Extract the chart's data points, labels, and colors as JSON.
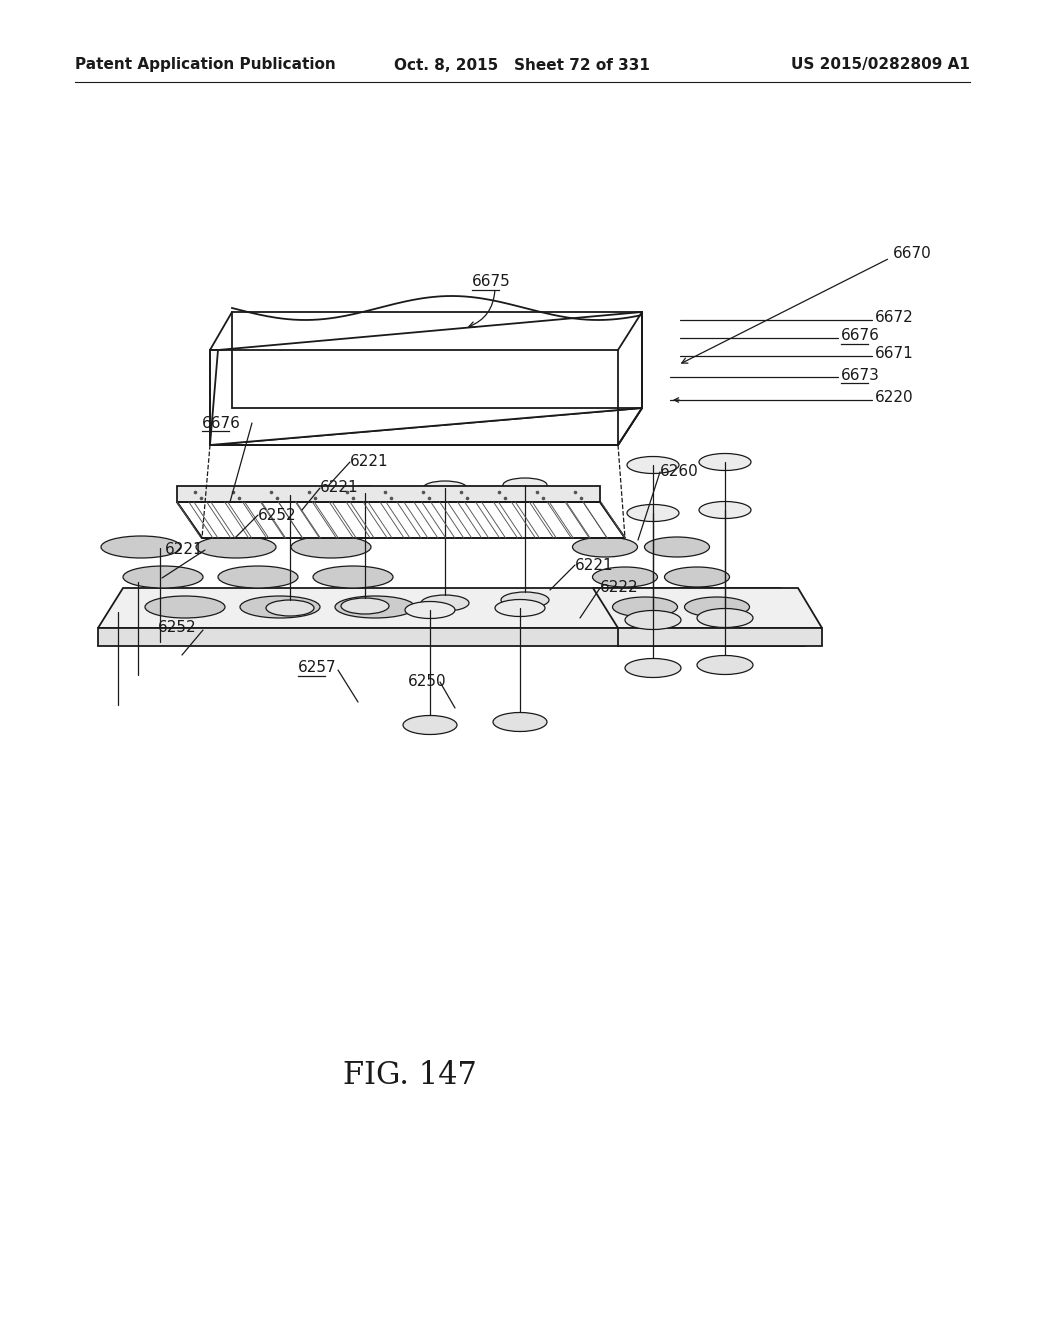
{
  "bg_color": "#ffffff",
  "line_color": "#1a1a1a",
  "header_left": "Patent Application Publication",
  "header_mid": "Oct. 8, 2015   Sheet 72 of 331",
  "header_right": "US 2015/0282809 A1",
  "fig_title": "FIG. 147",
  "header_fontsize": 11,
  "label_fontsize": 11,
  "title_fontsize": 22
}
